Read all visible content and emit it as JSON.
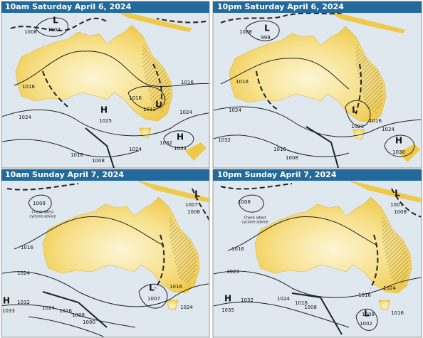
{
  "panels": [
    {
      "title": "10am Saturday April 6, 2024",
      "labels": [
        "L",
        "1004",
        "1008",
        "1016",
        "1016",
        "1016",
        "1024",
        "1024",
        "1024",
        "1016",
        "1008",
        "H",
        "1025",
        "H",
        "1032",
        "1033",
        "L",
        "1012"
      ]
    },
    {
      "title": "10pm Saturday April 6, 2024",
      "labels": [
        "1008",
        "L",
        "998",
        "1016",
        "1024",
        "1032",
        "1016",
        "1008",
        "L",
        "1021",
        "1016",
        "1024",
        "H",
        "1030"
      ]
    },
    {
      "title": "10am Sunday April 7, 2024",
      "labels": [
        "1008",
        "Check latest",
        "cyclone advice",
        "1016",
        "1024",
        "H",
        "1033",
        "1032",
        "1024",
        "1016",
        "1008",
        "1000",
        "L",
        "1007",
        "1016",
        "1024",
        "L",
        "1007",
        "1008"
      ]
    },
    {
      "title": "10pm Sunday April 7, 2024",
      "labels": [
        "1008",
        "Check latest",
        "cyclone advice",
        "1016",
        "1024",
        "H",
        "1035",
        "1032",
        "1024",
        "1016",
        "1008",
        "1016",
        "1024",
        "1008",
        "L",
        "1002",
        "1016",
        "L",
        "1007",
        "1008"
      ]
    }
  ]
}
